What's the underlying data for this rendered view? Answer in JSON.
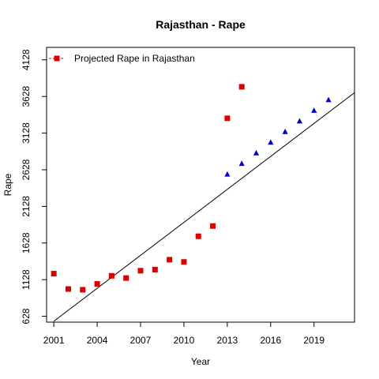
{
  "chart_data": {
    "type": "scatter",
    "title": "Rajasthan  -  Rape",
    "xlabel": "Year",
    "ylabel": "Rape",
    "xlim": [
      2000.5,
      2021.8
    ],
    "ylim": [
      548,
      4298
    ],
    "x_ticks": [
      2001,
      2004,
      2007,
      2010,
      2013,
      2016,
      2019
    ],
    "y_ticks": [
      628,
      1128,
      1628,
      2128,
      2628,
      3128,
      3628,
      4128
    ],
    "grid": false,
    "legend": {
      "placement": "top-left",
      "entries": [
        {
          "label": "Projected Rape in Rajasthan",
          "color": "#dd0000",
          "marker": "square"
        }
      ]
    },
    "series": [
      {
        "name": "Projected Rape in Rajasthan",
        "marker": "square",
        "color": "#dd0000",
        "points": [
          [
            2001,
            1210
          ],
          [
            2002,
            1000
          ],
          [
            2003,
            990
          ],
          [
            2004,
            1070
          ],
          [
            2005,
            1180
          ],
          [
            2006,
            1150
          ],
          [
            2007,
            1250
          ],
          [
            2008,
            1265
          ],
          [
            2009,
            1400
          ],
          [
            2010,
            1370
          ],
          [
            2011,
            1720
          ],
          [
            2012,
            1860
          ],
          [
            2013,
            3330
          ],
          [
            2014,
            3760
          ]
        ]
      },
      {
        "marker": "triangle",
        "color": "#0000cc",
        "points": [
          [
            2013,
            2565
          ],
          [
            2014,
            2710
          ],
          [
            2015,
            2855
          ],
          [
            2016,
            3000
          ],
          [
            2017,
            3145
          ],
          [
            2018,
            3290
          ],
          [
            2019,
            3435
          ],
          [
            2020,
            3580
          ]
        ]
      },
      {
        "type": "line",
        "color": "#000000",
        "points": [
          [
            2001,
            560
          ],
          [
            2021.8,
            3680
          ]
        ]
      }
    ]
  }
}
